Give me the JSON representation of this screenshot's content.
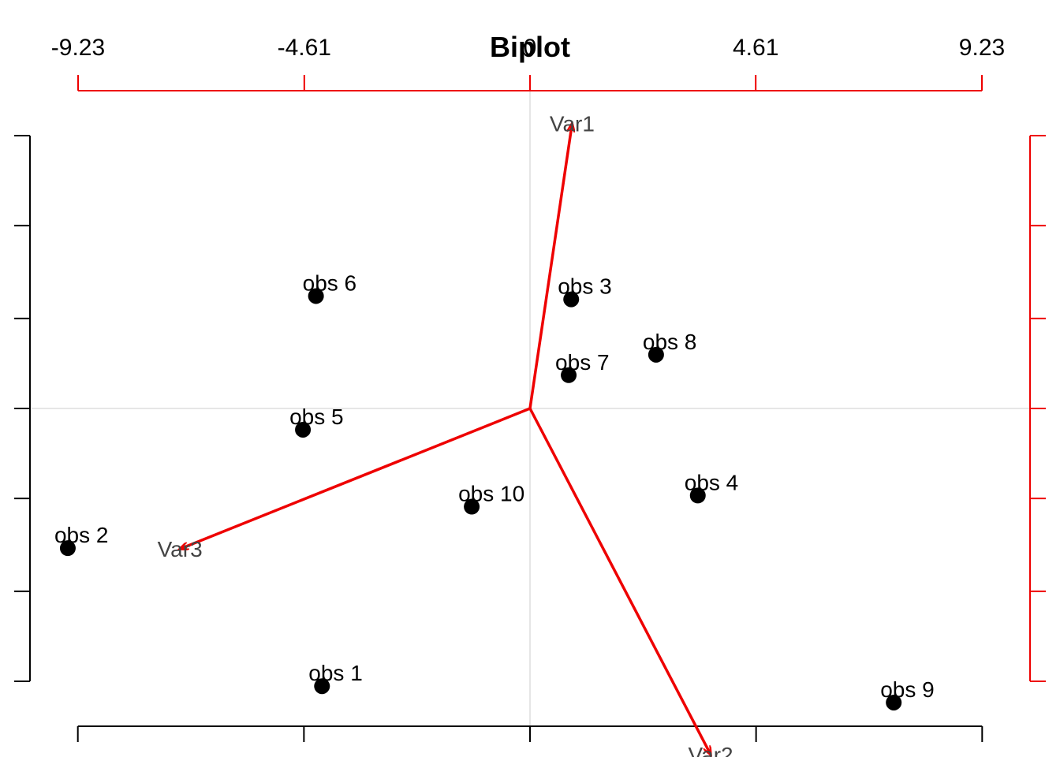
{
  "chart_data": {
    "type": "scatter",
    "subtype": "biplot",
    "title": "Biplot",
    "xlabel": "",
    "ylabel": "",
    "xlim": [
      -1.0,
      1.0
    ],
    "ylim": [
      -1.0,
      1.0
    ],
    "loading_lim": [
      -9.23,
      9.23
    ],
    "top_ticks": [
      -9.23,
      -4.61,
      0,
      4.61,
      9.23
    ],
    "top_tick_labels": [
      "-9.23",
      "-4.61",
      "0",
      "4.61",
      "9.23"
    ],
    "bottom_ticks": [
      -0.9,
      -0.45,
      0,
      0.45,
      0.9
    ],
    "left_ticks": [
      -1.0,
      -0.67,
      -0.33,
      0,
      0.33,
      0.67,
      1.0
    ],
    "right_ticks": [
      -1.0,
      -0.67,
      -0.33,
      0,
      0.33,
      0.67,
      1.0
    ],
    "reference_lines": {
      "x": 0,
      "y": 0
    },
    "observations": [
      {
        "label": "obs 1",
        "x": -0.414,
        "y": -1.018
      },
      {
        "label": "obs 2",
        "x": -0.92,
        "y": -0.512
      },
      {
        "label": "obs 3",
        "x": 0.082,
        "y": 0.4
      },
      {
        "label": "obs 4",
        "x": 0.334,
        "y": -0.319
      },
      {
        "label": "obs 5",
        "x": -0.452,
        "y": -0.078
      },
      {
        "label": "obs 6",
        "x": -0.426,
        "y": 0.412
      },
      {
        "label": "obs 7",
        "x": 0.077,
        "y": 0.122
      },
      {
        "label": "obs 8",
        "x": 0.251,
        "y": 0.197
      },
      {
        "label": "obs 9",
        "x": 0.724,
        "y": -1.078
      },
      {
        "label": "obs 10",
        "x": -0.116,
        "y": -0.36
      }
    ],
    "variables": [
      {
        "label": "Var1",
        "x": 0.86,
        "y": 5.82
      },
      {
        "label": "Var2",
        "x": 3.69,
        "y": -7.07
      },
      {
        "label": "Var3",
        "x": -7.15,
        "y": -2.87
      }
    ],
    "colors": {
      "points": "#000000",
      "arrows": "#ee0000",
      "loading_axes": "#ee0000",
      "score_axes": "#000000",
      "reference_lines": "#dddddd",
      "variable_labels": "#444444"
    }
  }
}
